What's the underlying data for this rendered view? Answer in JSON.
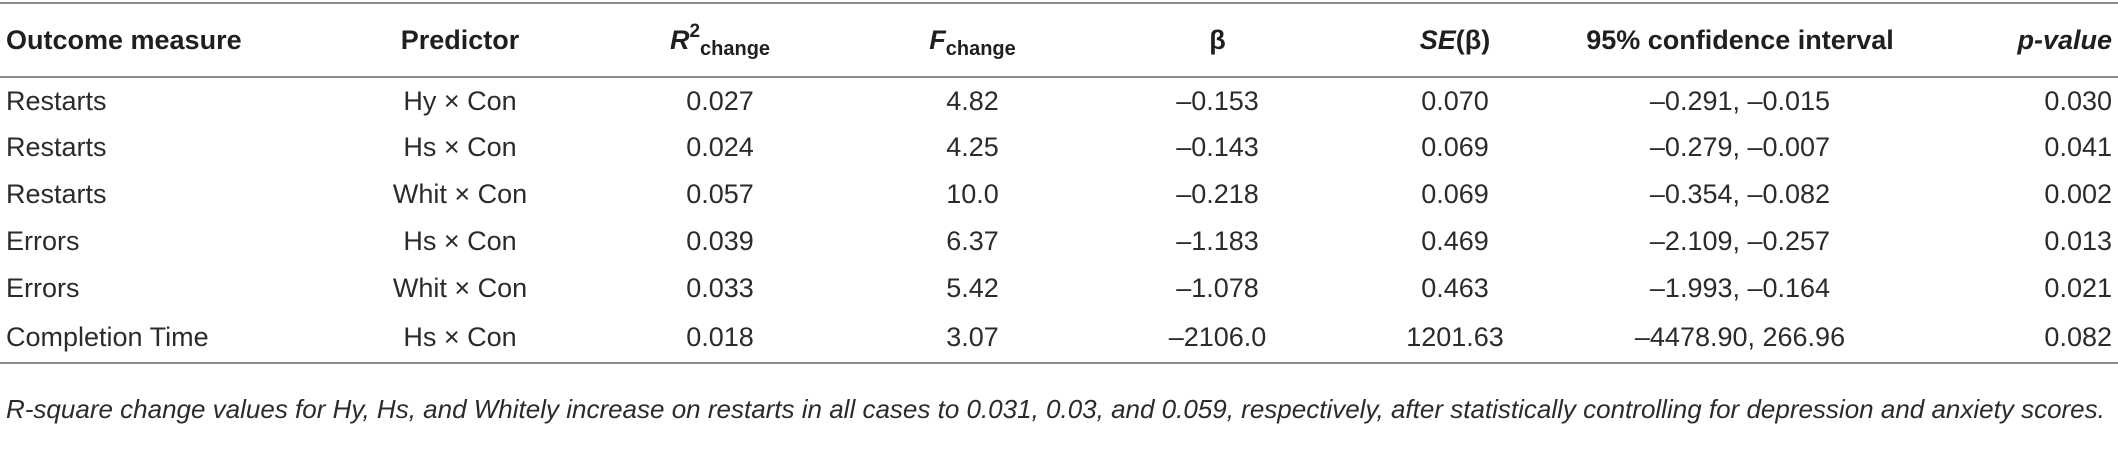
{
  "table": {
    "headers": {
      "outcome": "Outcome measure",
      "predictor": "Predictor",
      "r2_main": "R",
      "r2_sup": "2",
      "r2_sub": "change",
      "f_main": "F",
      "f_sub": "change",
      "beta": "β",
      "se_main": "SE",
      "se_paren": "(β)",
      "ci": "95% confidence interval",
      "p": "p-value"
    },
    "rows": [
      {
        "outcome": "Restarts",
        "predictor": "Hy × Con",
        "r2": "0.027",
        "f": "4.82",
        "beta": "–0.153",
        "se": "0.070",
        "ci": "–0.291, –0.015",
        "p": "0.030"
      },
      {
        "outcome": "Restarts",
        "predictor": "Hs × Con",
        "r2": "0.024",
        "f": "4.25",
        "beta": "–0.143",
        "se": "0.069",
        "ci": "–0.279, –0.007",
        "p": "0.041"
      },
      {
        "outcome": "Restarts",
        "predictor": "Whit × Con",
        "r2": "0.057",
        "f": "10.0",
        "beta": "–0.218",
        "se": "0.069",
        "ci": "–0.354, –0.082",
        "p": "0.002"
      },
      {
        "outcome": "Errors",
        "predictor": "Hs × Con",
        "r2": "0.039",
        "f": "6.37",
        "beta": "–1.183",
        "se": "0.469",
        "ci": "–2.109, –0.257",
        "p": "0.013"
      },
      {
        "outcome": "Errors",
        "predictor": "Whit × Con",
        "r2": "0.033",
        "f": "5.42",
        "beta": "–1.078",
        "se": "0.463",
        "ci": "–1.993, –0.164",
        "p": "0.021"
      },
      {
        "outcome": "Completion Time",
        "predictor": "Hs × Con",
        "r2": "0.018",
        "f": "3.07",
        "beta": "–2106.0",
        "se": "1201.63",
        "ci": "–4478.90, 266.96",
        "p": "0.082"
      }
    ]
  },
  "note": "R-square change values for Hy, Hs, and Whitely increase on restarts in all cases to 0.031, 0.03, and 0.059, respectively, after statistically controlling for depression and anxiety scores."
}
